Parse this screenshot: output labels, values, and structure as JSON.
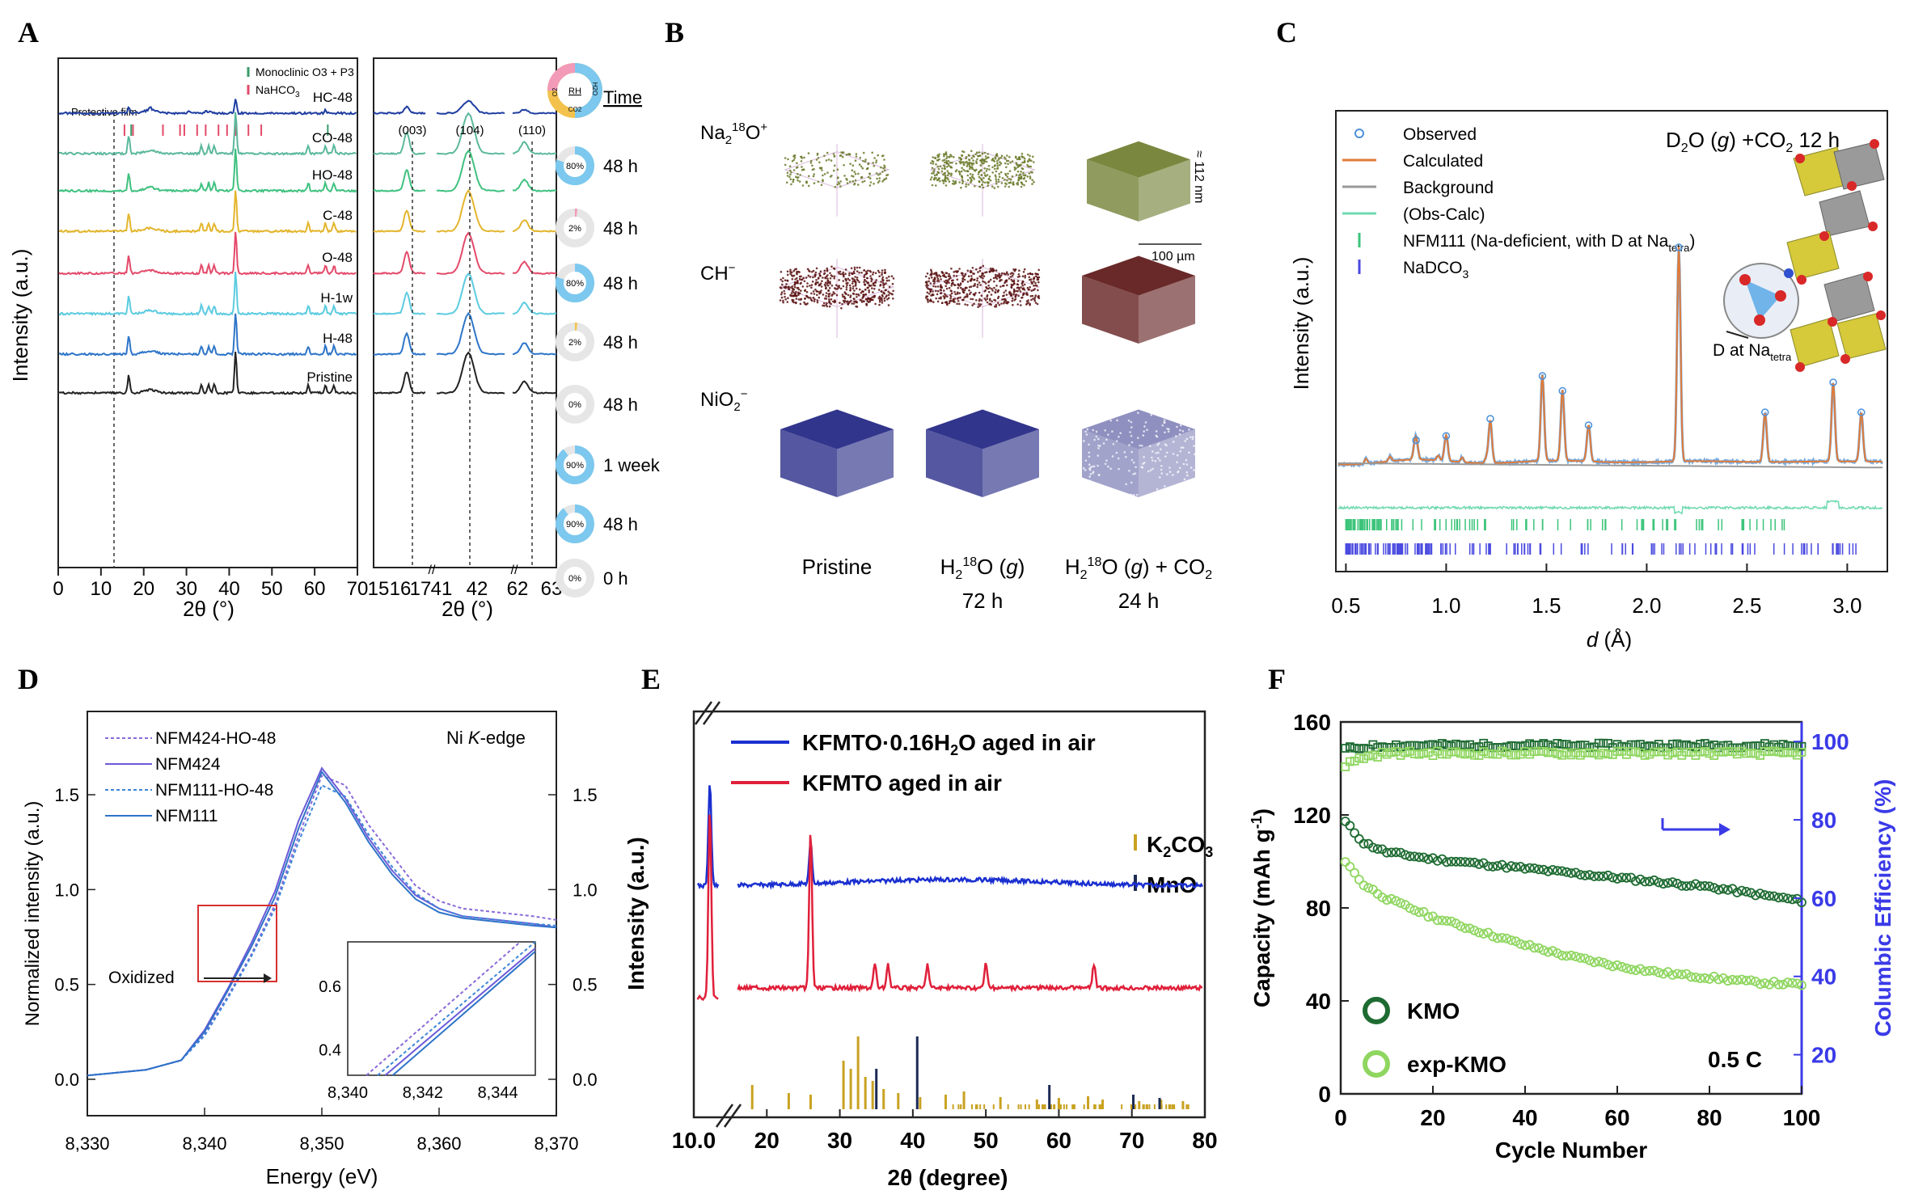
{
  "panels": {
    "a": {
      "letter": "A",
      "ylabel": "Intensity (a.u.)",
      "xlabel": "2θ (°)",
      "xlabel2": "2θ (°)",
      "legend": [
        "Monoclinic O3 + P3",
        "NaHCO3"
      ],
      "protective": "Protective film",
      "samples": [
        "HC-48",
        "CO-48",
        "HO-48",
        "C-48",
        "O-48",
        "H-1w",
        "H-48",
        "Pristine"
      ],
      "colors": [
        "#1f3da0",
        "#5bb89c",
        "#3fc17f",
        "#e3b52c",
        "#e34a6a",
        "#5ccbe0",
        "#2e75c8",
        "#222222"
      ],
      "rh": [
        "80%",
        "2%",
        "80%",
        "2%",
        "0%",
        "90%",
        "90%",
        "0%"
      ],
      "times": [
        "48 h",
        "48 h",
        "48 h",
        "48 h",
        "48 h",
        "1 week",
        "48 h",
        "0 h"
      ],
      "time_header": "Time",
      "donut": [
        "RH",
        "H2O",
        "CO2",
        "O2"
      ],
      "peaks": [
        "(003)",
        "(104)",
        "(110)"
      ],
      "xticks": [
        "0",
        "10",
        "20",
        "30",
        "40",
        "50",
        "60",
        "70"
      ],
      "xticks2": [
        "15",
        "16",
        "17",
        "41",
        "42",
        "62",
        "63"
      ]
    },
    "b": {
      "letter": "B",
      "rows": [
        "Na218O+",
        "CH−",
        "NiO2−"
      ],
      "cols": [
        "Pristine",
        "H218O (g)",
        "H218O (g) + CO2"
      ],
      "sub": [
        "",
        "72 h",
        "24 h"
      ],
      "scale_z": "≈ 112 nm",
      "scale_x": "100 µm"
    },
    "c": {
      "letter": "C",
      "title": "D2O (g) +CO2 12 h",
      "legend": [
        "Observed",
        "Calculated",
        "Background",
        "(Obs-Calc)",
        "NFM111 (Na-deficient, with D at Natetra)",
        "NaDCO3"
      ],
      "ylabel": "Intensity (a.u.)",
      "xlabel": "d (Å)",
      "xticks": [
        "0.5",
        "1.0",
        "1.5",
        "2.0",
        "2.5",
        "3.0"
      ],
      "annotation": "D at Natetra"
    },
    "d": {
      "letter": "D",
      "ylabel": "Normalized intensity (a.u.)",
      "xlabel": "Energy (eV)",
      "edge": "Ni K-edge",
      "legend": [
        "NFM424-HO-48",
        "NFM424",
        "NFM111-HO-48",
        "NFM111"
      ],
      "oxidized": "Oxidized",
      "xticks": [
        "8,330",
        "8,340",
        "8,350",
        "8,360",
        "8,370"
      ],
      "yticks": [
        "0.0",
        "0.5",
        "1.0",
        "1.5"
      ],
      "inset_xticks": [
        "8,340",
        "8,342",
        "8,344"
      ],
      "inset_yticks": [
        "0.4",
        "0.6"
      ]
    },
    "e": {
      "letter": "E",
      "legend": [
        "KFMTO·0.16H2O aged in air",
        "KFMTO aged in air"
      ],
      "ref": [
        "K2CO3",
        "MnO"
      ],
      "ylabel": "Intensity (a.u.)",
      "xlabel": "2θ (degree)",
      "xticks": [
        "10.0",
        "20",
        "30",
        "40",
        "50",
        "60",
        "70",
        "80"
      ]
    },
    "f": {
      "letter": "F",
      "ylabel": "Capacity (mAh g⁻¹)",
      "ylabel2": "Columbic Efficiency (%)",
      "xlabel": "Cycle Number",
      "legend": [
        "KMO",
        "exp-KMO"
      ],
      "rate": "0.5 C",
      "xticks": [
        "0",
        "20",
        "40",
        "60",
        "80",
        "100"
      ],
      "yticks": [
        "0",
        "40",
        "80",
        "120",
        "160"
      ],
      "y2ticks": [
        "20",
        "40",
        "60",
        "80",
        "100"
      ]
    }
  },
  "chart_data": [
    {
      "type": "line",
      "title": "",
      "xlabel": "2θ (°)",
      "ylabel": "Intensity (a.u.)",
      "xlim": [
        0,
        70
      ],
      "series": [
        {
          "name": "HC-48",
          "peaks": [
            16.5,
            21.5,
            30.5,
            34.5,
            35.5,
            41.5,
            62.5
          ]
        },
        {
          "name": "CO-48",
          "peaks": [
            16.5,
            33.5,
            35.2,
            36.5,
            41.5,
            58.5,
            62.5,
            64.5
          ]
        },
        {
          "name": "HO-48",
          "peaks": [
            16.5,
            33.5,
            35.2,
            36.5,
            41.5,
            58.5,
            62.5,
            64.5
          ]
        },
        {
          "name": "C-48",
          "peaks": [
            16.5,
            33.5,
            35.2,
            36.5,
            41.5,
            58.5,
            62.5,
            64.5
          ]
        },
        {
          "name": "O-48",
          "peaks": [
            16.5,
            33.5,
            35.2,
            36.5,
            41.5,
            58.5,
            62.5,
            64.5
          ]
        },
        {
          "name": "H-1w",
          "peaks": [
            16.5,
            33.5,
            35.2,
            36.5,
            41.5,
            58.5,
            62.5,
            64.5
          ]
        },
        {
          "name": "H-48",
          "peaks": [
            16.5,
            33.5,
            35.2,
            36.5,
            41.5,
            58.5,
            62.5,
            64.5
          ]
        },
        {
          "name": "Pristine",
          "peaks": [
            16.5,
            33.5,
            35.2,
            36.5,
            41.5,
            58.5,
            62.5,
            64.5
          ]
        }
      ],
      "ticks_monoclinic": [
        16.5,
        62.5
      ],
      "ticks_nahco3": [
        15.5,
        17.5,
        24.5,
        28.5,
        29.5,
        32.5,
        34.5,
        37.5,
        39.5,
        41.5,
        44.5,
        47.5
      ]
    },
    {
      "type": "line",
      "title": "D2O (g) +CO2 12 h",
      "xlabel": "d (Å)",
      "ylabel": "Intensity (a.u.)",
      "xlim": [
        0.45,
        3.2
      ],
      "peaks": [
        {
          "d": 0.85,
          "h": 0.1
        },
        {
          "d": 1.0,
          "h": 0.12
        },
        {
          "d": 1.22,
          "h": 0.2
        },
        {
          "d": 1.48,
          "h": 0.4
        },
        {
          "d": 1.58,
          "h": 0.33
        },
        {
          "d": 1.71,
          "h": 0.17
        },
        {
          "d": 2.16,
          "h": 1.0
        },
        {
          "d": 2.59,
          "h": 0.23
        },
        {
          "d": 2.93,
          "h": 0.37
        },
        {
          "d": 3.07,
          "h": 0.23
        }
      ]
    },
    {
      "type": "line",
      "title": "Ni K-edge",
      "xlabel": "Energy (eV)",
      "ylabel": "Normalized intensity (a.u.)",
      "xlim": [
        8330,
        8370
      ],
      "ylim": [
        -0.15,
        1.85
      ],
      "x": [
        8330,
        8335,
        8338,
        8340,
        8342,
        8344,
        8346,
        8348,
        8350,
        8352,
        8354,
        8356,
        8358,
        8360,
        8362,
        8365,
        8368,
        8370
      ],
      "series": [
        {
          "name": "NFM424-HO-48",
          "values": [
            0.02,
            0.05,
            0.1,
            0.24,
            0.44,
            0.66,
            0.92,
            1.28,
            1.6,
            1.55,
            1.34,
            1.18,
            1.02,
            0.94,
            0.9,
            0.88,
            0.86,
            0.84
          ]
        },
        {
          "name": "NFM424",
          "values": [
            0.02,
            0.05,
            0.1,
            0.26,
            0.48,
            0.72,
            0.99,
            1.36,
            1.64,
            1.48,
            1.27,
            1.1,
            0.97,
            0.9,
            0.86,
            0.84,
            0.82,
            0.8
          ]
        },
        {
          "name": "NFM111-HO-48",
          "values": [
            0.02,
            0.05,
            0.1,
            0.23,
            0.43,
            0.65,
            0.9,
            1.25,
            1.55,
            1.49,
            1.29,
            1.12,
            0.98,
            0.9,
            0.86,
            0.84,
            0.82,
            0.81
          ]
        },
        {
          "name": "NFM111",
          "values": [
            0.02,
            0.05,
            0.1,
            0.25,
            0.47,
            0.7,
            0.96,
            1.32,
            1.62,
            1.46,
            1.25,
            1.08,
            0.95,
            0.88,
            0.85,
            0.83,
            0.81,
            0.8
          ]
        }
      ]
    },
    {
      "type": "line",
      "title": "",
      "xlabel": "2θ (degree)",
      "ylabel": "Intensity (a.u.)",
      "xlim": [
        10,
        80
      ],
      "series": [
        {
          "name": "KFMTO·0.16H2O aged in air",
          "peaks": [
            12.2,
            26.0
          ]
        },
        {
          "name": "KFMTO aged in air",
          "peaks": [
            12.2,
            26.0,
            34.8,
            36.6,
            42.0,
            50.0,
            64.8
          ]
        }
      ],
      "ticks_K2CO3": [
        18,
        23,
        26,
        30.5,
        31.5,
        32.5,
        33.5,
        34.5,
        36,
        38,
        41,
        44.5,
        47,
        52,
        57,
        60,
        64,
        66,
        71,
        74,
        77
      ],
      "ticks_MnO": [
        35,
        40.6,
        58.7,
        70.2,
        73.8
      ]
    },
    {
      "type": "scatter",
      "title": "",
      "xlabel": "Cycle Number",
      "ylabel": "Capacity (mAh g⁻¹)",
      "ylabel2": "Columbic Efficiency (%)",
      "xlim": [
        0,
        100
      ],
      "ylim": [
        0,
        160
      ],
      "y2lim": [
        10,
        105
      ],
      "x": [
        1,
        5,
        10,
        20,
        30,
        40,
        50,
        60,
        70,
        80,
        90,
        100
      ],
      "series": [
        {
          "name": "KMO capacity",
          "values": [
            117,
            108,
            104,
            101,
            99,
            97,
            95,
            93,
            91,
            89,
            86,
            83
          ]
        },
        {
          "name": "exp-KMO capacity",
          "values": [
            100,
            90,
            84,
            76,
            70,
            64,
            59,
            55,
            52,
            50,
            48,
            47
          ]
        },
        {
          "name": "KMO efficiency",
          "values": [
            98,
            98.5,
            99,
            99,
            99,
            99,
            99,
            99,
            99,
            99,
            99,
            99
          ]
        },
        {
          "name": "exp-KMO efficiency",
          "values": [
            94,
            96,
            97,
            97,
            97,
            97,
            97,
            97,
            97,
            97,
            97,
            97
          ]
        }
      ]
    }
  ]
}
